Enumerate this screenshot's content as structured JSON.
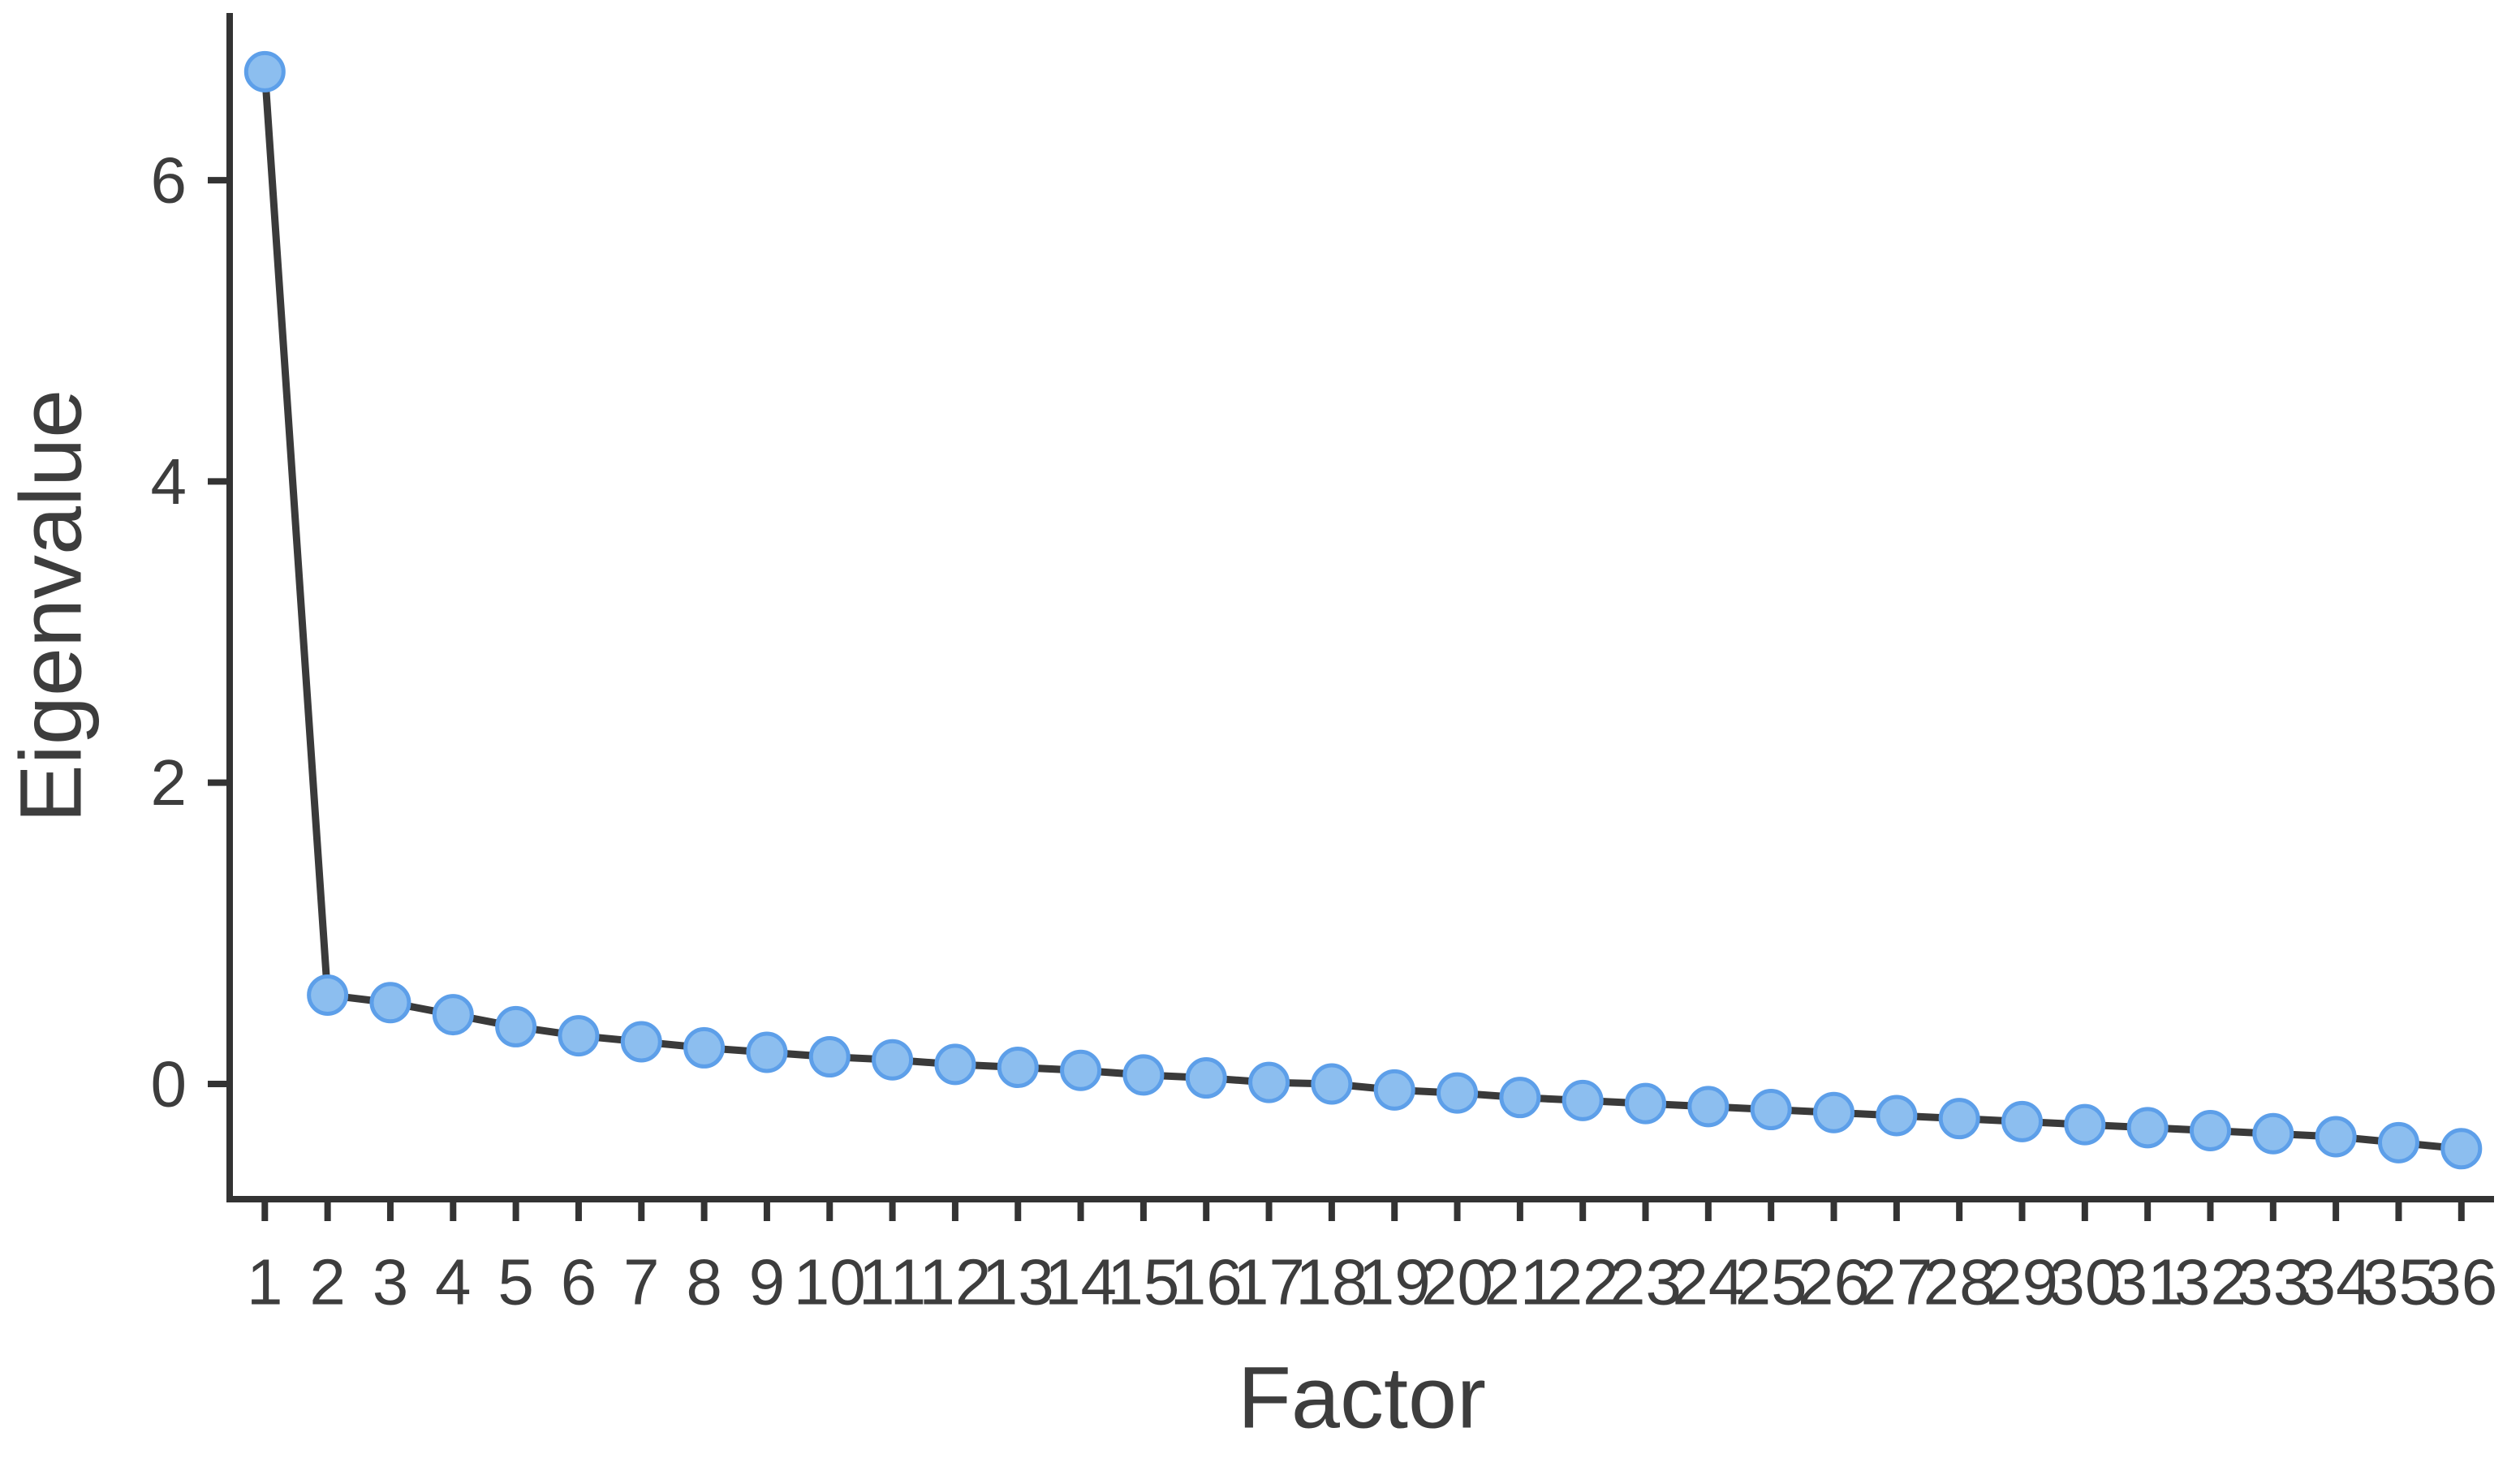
{
  "chart_data": {
    "type": "line",
    "title": "",
    "xlabel": "Factor",
    "ylabel": "Eigenvalue",
    "x": [
      1,
      2,
      3,
      4,
      5,
      6,
      7,
      8,
      9,
      10,
      11,
      12,
      13,
      14,
      15,
      16,
      17,
      18,
      19,
      20,
      21,
      22,
      23,
      24,
      25,
      26,
      27,
      28,
      29,
      30,
      31,
      32,
      33,
      34,
      35,
      36
    ],
    "series": [
      {
        "name": "Eigenvalues",
        "values": [
          6.72,
          0.59,
          0.54,
          0.46,
          0.38,
          0.32,
          0.28,
          0.24,
          0.21,
          0.18,
          0.16,
          0.13,
          0.11,
          0.09,
          0.06,
          0.04,
          0.01,
          0.0,
          -0.04,
          -0.06,
          -0.09,
          -0.11,
          -0.13,
          -0.15,
          -0.17,
          -0.19,
          -0.21,
          -0.23,
          -0.25,
          -0.27,
          -0.29,
          -0.31,
          -0.33,
          -0.35,
          -0.39,
          -0.43
        ]
      }
    ],
    "xtick_labels": [
      "1",
      "2",
      "3",
      "4",
      "5",
      "6",
      "7",
      "8",
      "9",
      "10",
      "11",
      "12",
      "13",
      "14",
      "15",
      "16",
      "17",
      "18",
      "19",
      "20",
      "21",
      "22",
      "23",
      "24",
      "25",
      "26",
      "27",
      "28",
      "29",
      "30",
      "31",
      "32",
      "33",
      "34",
      "35",
      "36"
    ],
    "ytick_values": [
      0,
      2,
      4,
      6
    ],
    "ytick_labels": [
      "0",
      "2",
      "4",
      "6"
    ],
    "xlim": [
      0.44,
      36.52
    ],
    "ylim": [
      -0.765,
      7.11
    ],
    "grid": false,
    "legend": "none",
    "marker": "circle",
    "colors": {
      "marker_fill": "#8CBEEF",
      "marker_stroke": "#5D9FE9",
      "line": "#3A3A3A",
      "axis": "#333333",
      "text": "#3D3D3D",
      "background": "#FFFFFF"
    }
  }
}
